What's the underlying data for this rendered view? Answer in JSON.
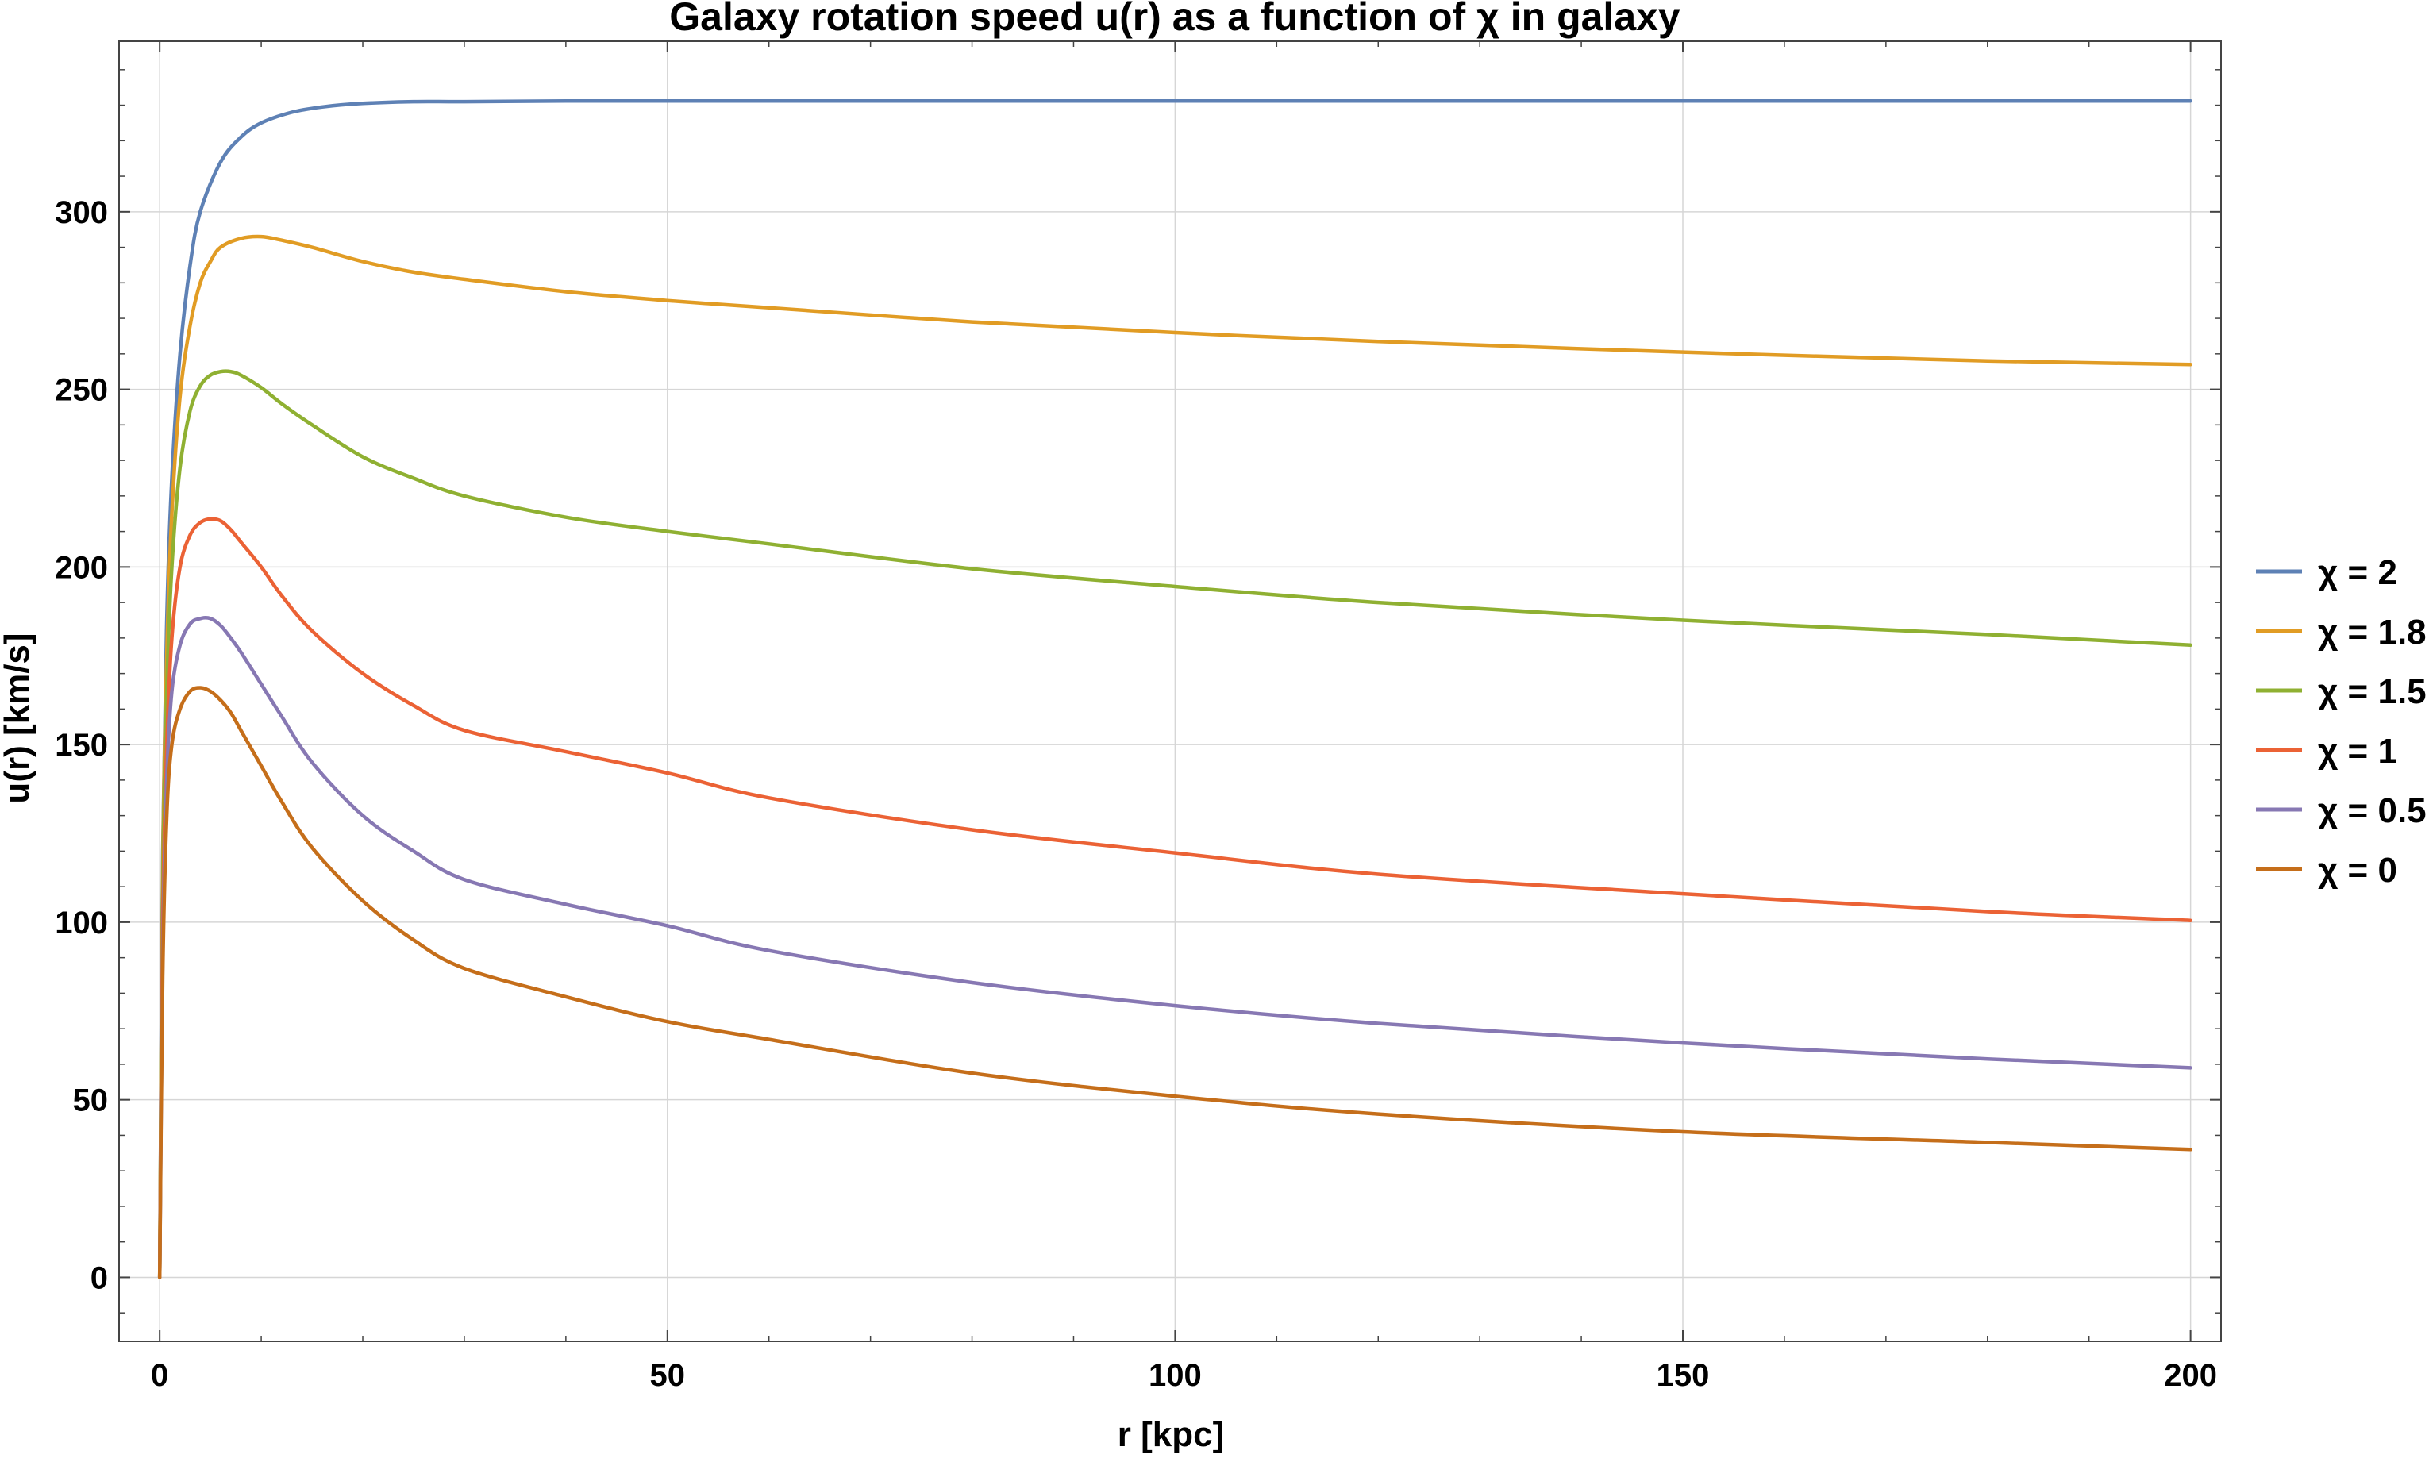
{
  "chart_data": {
    "type": "line",
    "title": "Galaxy rotation speed u(r) as a function of χ in galaxy",
    "xlabel": "r [kpc]",
    "ylabel": "u(r) [km/s]",
    "xlim": [
      -4,
      203
    ],
    "ylim": [
      -18,
      348
    ],
    "xticks": [
      0,
      50,
      100,
      150,
      200
    ],
    "yticks": [
      0,
      50,
      100,
      150,
      200,
      250,
      300
    ],
    "x_tick_labels": [
      "0",
      "50",
      "100",
      "150",
      "200"
    ],
    "y_tick_labels": [
      "0",
      "50",
      "100",
      "150",
      "200",
      "250",
      "300"
    ],
    "x_minor_step": 10,
    "y_minor_step": 10,
    "grid": true,
    "legend_position": "right",
    "series": [
      {
        "name": "χ = 2",
        "color": "#5e81b5",
        "x": [
          0,
          0.3,
          0.7,
          1.2,
          2,
          3,
          4,
          6,
          8,
          10,
          13,
          16,
          20,
          25,
          30,
          40,
          60,
          100,
          150,
          200
        ],
        "y": [
          0,
          120,
          185,
          225,
          260,
          285,
          300,
          314,
          321,
          325,
          328,
          329.5,
          330.5,
          331,
          331,
          331.2,
          331.2,
          331.2,
          331.2,
          331.2
        ]
      },
      {
        "name": "χ = 1.8",
        "color": "#e19c24",
        "x": [
          0,
          0.3,
          0.7,
          1.2,
          2,
          3,
          4,
          5,
          6,
          8,
          10,
          12,
          15,
          20,
          25,
          30,
          40,
          50,
          60,
          80,
          100,
          120,
          150,
          180,
          200
        ],
        "y": [
          0,
          115,
          175,
          215,
          248,
          268,
          280,
          286,
          290,
          292.5,
          293,
          292,
          290,
          286,
          283,
          281,
          277.5,
          275,
          273,
          269,
          266,
          263.5,
          260.5,
          258,
          257
        ]
      },
      {
        "name": "χ = 1.5",
        "color": "#8fb032",
        "x": [
          0,
          0.3,
          0.7,
          1.2,
          2,
          3,
          4,
          5,
          6,
          7,
          8,
          10,
          12,
          15,
          20,
          25,
          30,
          40,
          50,
          60,
          80,
          100,
          120,
          150,
          180,
          200
        ],
        "y": [
          0,
          110,
          165,
          200,
          228,
          244,
          251,
          254,
          255,
          255,
          254,
          250.5,
          246,
          240,
          231,
          225,
          220,
          214,
          210,
          206.5,
          199.5,
          194.5,
          190,
          185,
          181,
          178
        ]
      },
      {
        "name": "χ = 1",
        "color": "#eb6235",
        "x": [
          0,
          0.3,
          0.7,
          1.2,
          2,
          3,
          4,
          5,
          6,
          7,
          8,
          10,
          12,
          15,
          20,
          25,
          30,
          40,
          50,
          60,
          80,
          100,
          120,
          150,
          180,
          200
        ],
        "y": [
          0,
          100,
          150,
          180,
          200,
          209,
          212.5,
          213.5,
          213,
          210.5,
          207,
          200,
          192,
          182,
          170,
          161,
          154,
          148,
          142,
          135,
          126,
          119.5,
          113.5,
          108,
          103,
          100.5
        ]
      },
      {
        "name": "χ = 0.5",
        "color": "#8778b3",
        "x": [
          0,
          0.3,
          0.7,
          1.2,
          2,
          3,
          4,
          5,
          6,
          7,
          8,
          10,
          12,
          15,
          20,
          25,
          30,
          40,
          50,
          60,
          80,
          100,
          120,
          150,
          180,
          200
        ],
        "y": [
          0,
          90,
          140,
          165,
          178,
          184,
          185.5,
          185.5,
          183.5,
          180,
          176,
          167,
          158,
          145,
          130,
          120,
          112,
          105,
          99,
          92,
          83,
          76.5,
          71.5,
          66,
          61.5,
          59
        ]
      },
      {
        "name": "χ = 0",
        "color": "#c56e1a",
        "x": [
          0,
          0.3,
          0.7,
          1.2,
          2,
          3,
          4,
          5,
          6,
          7,
          8,
          10,
          12,
          15,
          20,
          25,
          30,
          40,
          50,
          60,
          80,
          100,
          120,
          150,
          180,
          200
        ],
        "y": [
          0,
          85,
          130,
          150,
          160,
          165,
          166,
          165,
          162.5,
          159,
          154,
          144,
          134,
          121,
          106,
          95,
          87,
          79,
          72,
          67,
          57.5,
          51,
          46,
          41,
          38,
          36
        ]
      }
    ]
  }
}
